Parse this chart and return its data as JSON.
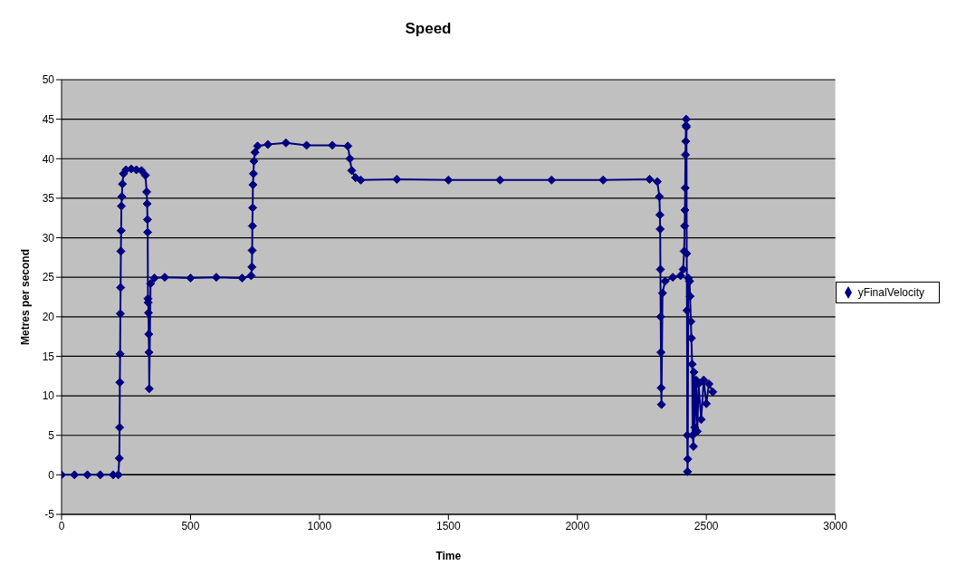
{
  "chart_data": {
    "type": "line",
    "title": "Speed",
    "xlabel": "Time",
    "ylabel": "Metres per second",
    "xlim": [
      0,
      3000
    ],
    "xticks": [
      0,
      500,
      1000,
      1500,
      2000,
      2500,
      3000
    ],
    "ylim": [
      -5,
      50
    ],
    "yticks": [
      -5,
      0,
      5,
      10,
      15,
      20,
      25,
      30,
      35,
      40,
      45,
      50
    ],
    "grid": "y",
    "legend": "right",
    "marker": "diamond",
    "line_style": "solid",
    "x": [
      0,
      50,
      100,
      150,
      200,
      220,
      224,
      225,
      226,
      227,
      228,
      229,
      230,
      231,
      232,
      234,
      236,
      240,
      250,
      270,
      290,
      310,
      325,
      330,
      332,
      333,
      334,
      335,
      336,
      337,
      338,
      339,
      340,
      345,
      360,
      400,
      500,
      600,
      700,
      735,
      738,
      739,
      740,
      741,
      742,
      744,
      746,
      750,
      760,
      800,
      870,
      950,
      1050,
      1110,
      1118,
      1125,
      1140,
      1160,
      1300,
      1500,
      1700,
      1900,
      2100,
      2280,
      2310,
      2318,
      2320,
      2321,
      2322,
      2323,
      2324,
      2325,
      2326,
      2330,
      2340,
      2370,
      2400,
      2410,
      2414,
      2416,
      2417,
      2418,
      2419,
      2420,
      2421,
      2422,
      2423,
      2424,
      2425,
      2426,
      2427,
      2428,
      2430,
      2435,
      2437,
      2440,
      2442,
      2445,
      2447,
      2450,
      2452,
      2455,
      2460,
      2465,
      2470,
      2480,
      2490,
      2500,
      2510,
      2525
    ],
    "series": [
      {
        "name": "yFinalVelocity",
        "color": "#000080",
        "values": [
          0,
          0,
          0,
          0,
          0,
          0,
          2.1,
          6,
          11.7,
          15.3,
          20.4,
          23.7,
          28.3,
          30.9,
          34,
          35.2,
          36.8,
          38.1,
          38.6,
          38.7,
          38.6,
          38.5,
          37.9,
          35.8,
          34.3,
          32.3,
          30.7,
          22.3,
          21.8,
          20.5,
          17.8,
          15.5,
          10.9,
          24.2,
          24.9,
          25,
          24.9,
          25,
          24.9,
          25.2,
          26.3,
          28.4,
          31.5,
          33.8,
          36.7,
          38.1,
          39.7,
          40.8,
          41.6,
          41.8,
          42,
          41.7,
          41.7,
          41.6,
          40,
          38.5,
          37.6,
          37.3,
          37.4,
          37.3,
          37.3,
          37.3,
          37.3,
          37.4,
          37.1,
          35.2,
          32.9,
          31.1,
          26,
          20,
          15.5,
          11,
          8.9,
          23,
          24.5,
          25,
          25.2,
          26,
          28.3,
          31.5,
          33.5,
          36.3,
          40.5,
          42.2,
          44.2,
          45,
          44,
          28,
          20.8,
          5,
          0.4,
          2,
          24.9,
          24.5,
          22.6,
          19.4,
          17.3,
          14,
          5,
          3.6,
          13,
          6,
          12,
          5.5,
          11.5,
          7,
          12,
          9,
          11.5,
          10.5
        ]
      }
    ]
  }
}
